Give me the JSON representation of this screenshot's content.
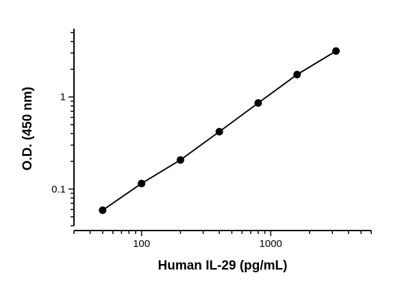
{
  "chart_data": {
    "type": "line",
    "xlabel": "Human  IL-29 (pg/mL)",
    "ylabel": "O.D. (450 nm)",
    "xscale": "log",
    "yscale": "log",
    "xlim": [
      30,
      6000
    ],
    "ylim": [
      0.04,
      5.5
    ],
    "x_tick_labels": [
      "100",
      "1000"
    ],
    "y_tick_labels": [
      "0.1",
      "1"
    ],
    "grid": false,
    "legend": "none",
    "series": [
      {
        "x": [
          50,
          100,
          200,
          400,
          800,
          1600,
          3200
        ],
        "y": [
          0.059,
          0.115,
          0.207,
          0.42,
          0.86,
          1.75,
          3.15
        ],
        "marker": "circle",
        "color": "#000000"
      }
    ]
  }
}
